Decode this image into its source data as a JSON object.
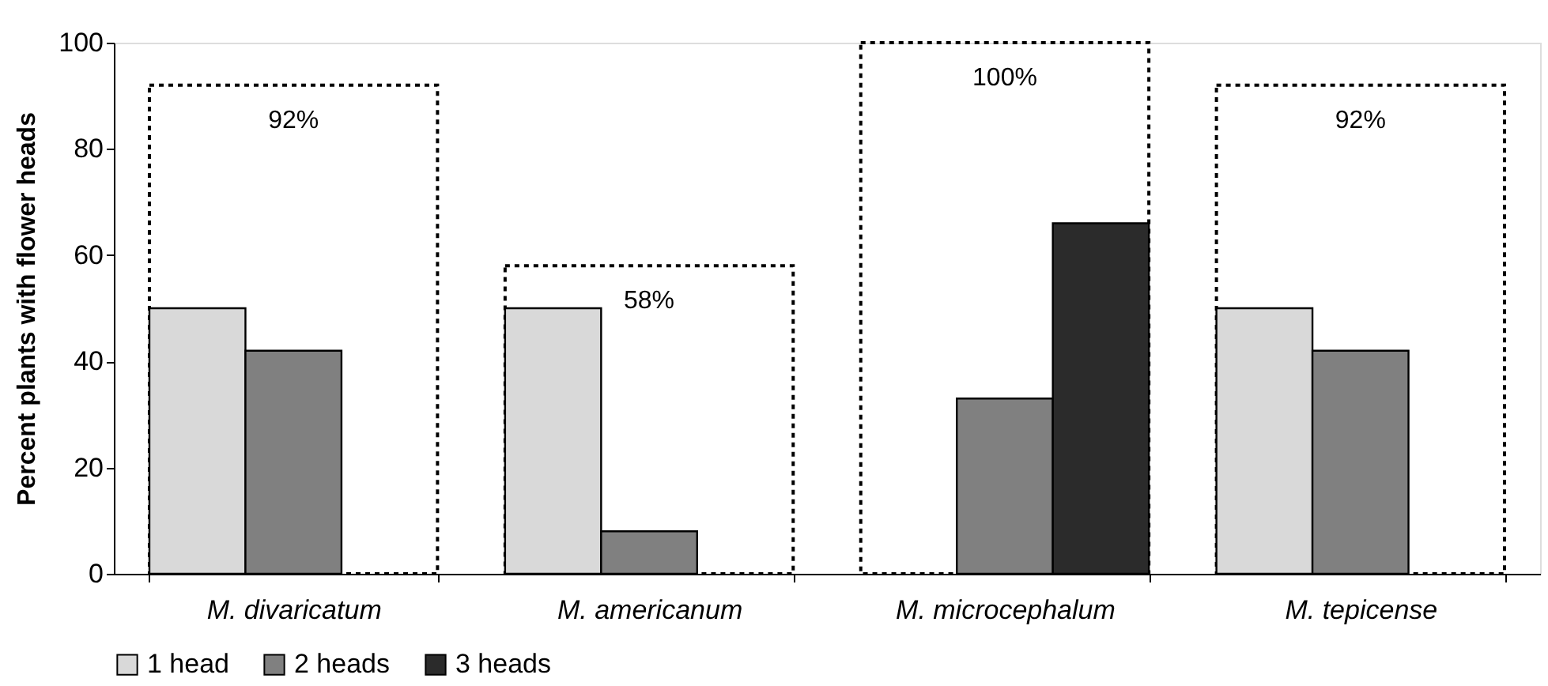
{
  "chart_data": {
    "type": "bar",
    "ylabel": "Percent plants with flower heads",
    "categories": [
      "M. divaricatum",
      "M. americanum",
      "M. microcephalum",
      "M. tepicense"
    ],
    "ylim": [
      0,
      100
    ],
    "yticks": [
      0,
      20,
      40,
      60,
      80,
      100
    ],
    "grid": false,
    "legend": "bottom",
    "series": [
      {
        "name": "1 head",
        "color": "#d9d9d9",
        "values": [
          50,
          50,
          null,
          50
        ]
      },
      {
        "name": "2 heads",
        "color": "#808080",
        "values": [
          42,
          8,
          33,
          42
        ]
      },
      {
        "name": "3 heads",
        "color": "#2b2b2b",
        "values": [
          null,
          null,
          66,
          null
        ]
      },
      {
        "type": "bar",
        "color": "#000000",
        "line_style": "dotted",
        "values": [
          92,
          58,
          100,
          92
        ],
        "value_labels": [
          "92%",
          "58%",
          "100%",
          "92%"
        ]
      }
    ]
  }
}
